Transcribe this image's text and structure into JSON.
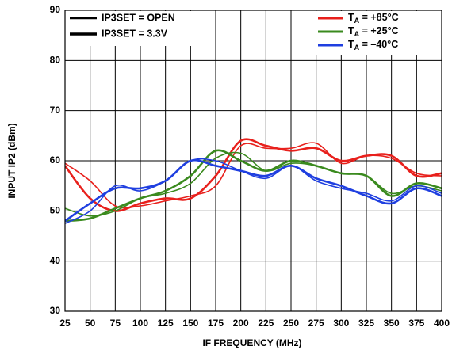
{
  "chart_data": {
    "type": "line",
    "xlabel": "IF FREQUENCY (MHz)",
    "ylabel": "INPUT IP2 (dBm)",
    "x": [
      25,
      50,
      75,
      100,
      125,
      150,
      175,
      200,
      225,
      250,
      275,
      300,
      325,
      350,
      375,
      400
    ],
    "xlim": [
      25,
      400
    ],
    "xticks": [
      25,
      50,
      75,
      100,
      125,
      150,
      175,
      200,
      225,
      250,
      275,
      300,
      325,
      350,
      375,
      400
    ],
    "ylim": [
      30,
      90
    ],
    "yticks": [
      30,
      40,
      50,
      60,
      70,
      80,
      90
    ],
    "grid": true,
    "settings": [
      "IP3SET = OPEN",
      "IP3SET = 3.3V"
    ],
    "setting_line_widths": [
      1.6,
      2.6
    ],
    "series": [
      {
        "name": "TA = +85°C",
        "color": "#e8201c",
        "values": [
          [
            59.5,
            56,
            51,
            51,
            52,
            53,
            55,
            63,
            62.5,
            62.5,
            63.5,
            59.5,
            61,
            60.5,
            57.5,
            57
          ],
          [
            59,
            52.5,
            50,
            51.5,
            52.5,
            52.5,
            57,
            64,
            63,
            62,
            62.5,
            60,
            61,
            61,
            57,
            57.5
          ]
        ]
      },
      {
        "name": "TA = +25°C",
        "color": "#3a8a1e",
        "values": [
          [
            50.5,
            49,
            50,
            52.5,
            53.5,
            55.5,
            60.5,
            61.5,
            58,
            59.5,
            59,
            57.5,
            57,
            53.5,
            55,
            54
          ],
          [
            48,
            48.5,
            50.5,
            52.5,
            54,
            57,
            62,
            60,
            58,
            60,
            59,
            57.5,
            57,
            53,
            55.5,
            54.5
          ]
        ]
      },
      {
        "name": "TA = –40°C",
        "color": "#1f3fe0",
        "values": [
          [
            47.5,
            50,
            55,
            54,
            56,
            60,
            60,
            58,
            56.5,
            59,
            56,
            54.5,
            53.5,
            52,
            55,
            53.5
          ],
          [
            48,
            51.5,
            54.5,
            54.5,
            56,
            60,
            59,
            58,
            57,
            59,
            56.5,
            55,
            53,
            51.5,
            54.5,
            53
          ]
        ]
      }
    ]
  }
}
